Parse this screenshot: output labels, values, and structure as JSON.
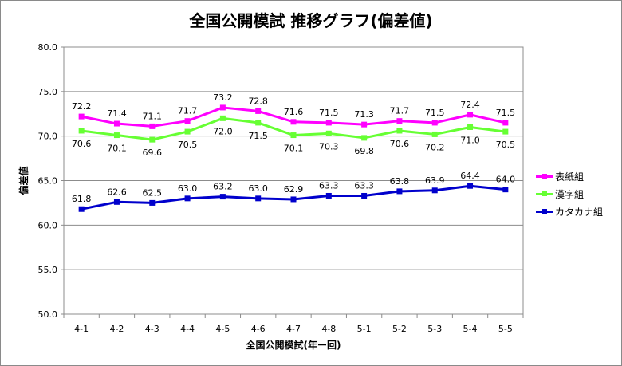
{
  "chart_data": {
    "type": "line",
    "title": "全国公開模試 推移グラフ(偏差値)",
    "xlabel": "全国公開模試(年ー回)",
    "ylabel": "偏差値",
    "categories": [
      "4-1",
      "4-2",
      "4-3",
      "4-4",
      "4-5",
      "4-6",
      "4-7",
      "4-8",
      "5-1",
      "5-2",
      "5-3",
      "5-4",
      "5-5"
    ],
    "ylim": [
      50.0,
      80.0
    ],
    "yticks": [
      "50.0",
      "55.0",
      "60.0",
      "65.0",
      "70.0",
      "75.0",
      "80.0"
    ],
    "grid": true,
    "legend_position": "right",
    "series": [
      {
        "name": "表紙組",
        "color": "#ff00ff",
        "label_position": "above",
        "values": [
          72.2,
          71.4,
          71.1,
          71.7,
          73.2,
          72.8,
          71.6,
          71.5,
          71.3,
          71.7,
          71.5,
          72.4,
          71.5
        ]
      },
      {
        "name": "漢字組",
        "color": "#66ff33",
        "label_position": "below",
        "values": [
          70.6,
          70.1,
          69.6,
          70.5,
          72.0,
          71.5,
          70.1,
          70.3,
          69.8,
          70.6,
          70.2,
          71.0,
          70.5
        ]
      },
      {
        "name": "カタカナ組",
        "color": "#0000cc",
        "label_position": "above",
        "values": [
          61.8,
          62.6,
          62.5,
          63.0,
          63.2,
          63.0,
          62.9,
          63.3,
          63.3,
          63.8,
          63.9,
          64.4,
          64.0
        ]
      }
    ]
  }
}
